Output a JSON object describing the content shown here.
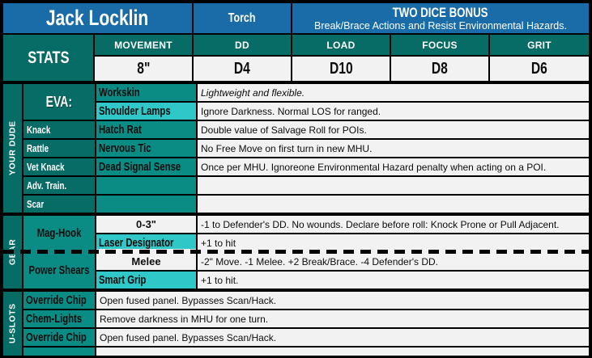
{
  "header": {
    "name": "Jack Locklin",
    "class": "Torch",
    "bonus_title": "TWO DICE BONUS",
    "bonus_subtitle": "Break/Brace Actions and Resist Environmental Hazards."
  },
  "stats": {
    "label": "STATS",
    "columns": [
      {
        "label": "MOVEMENT",
        "value": "8\""
      },
      {
        "label": "DD",
        "value": "D4"
      },
      {
        "label": "LOAD",
        "value": "D10"
      },
      {
        "label": "FOCUS",
        "value": "D8"
      },
      {
        "label": "GRIT",
        "value": "D6"
      }
    ]
  },
  "your_dude": {
    "section_label": "YOUR DUDE",
    "rows": [
      {
        "label": "EVA:",
        "item": "Workskin",
        "desc": "Lightweight and flexible."
      },
      {
        "label": "",
        "item": "Shoulder Lamps",
        "desc": "Ignore Darkness. Normal LOS for ranged."
      },
      {
        "label": "Knack",
        "item": "Hatch Rat",
        "desc": "Double value of Salvage Roll for POIs."
      },
      {
        "label": "Rattle",
        "item": "Nervous Tic",
        "desc": "No Free Move on first turn in new MHU."
      },
      {
        "label": "Vet Knack",
        "item": "Dead Signal Sense",
        "desc": "Once per MHU. Ignoreone Environmental Hazard penalty when acting on a POI."
      },
      {
        "label": "Adv. Train.",
        "item": "",
        "desc": ""
      },
      {
        "label": "Scar",
        "item": "",
        "desc": ""
      }
    ]
  },
  "gear": {
    "section_label": "GEAR",
    "weapons": [
      {
        "name": "Mag-Hook",
        "range": "0-3\"",
        "range_desc": "-1 to Defender's DD. No wounds. Declare before roll: Knock Prone or Pull Adjacent.",
        "mod": "Laser Designator",
        "mod_desc": "+1 to hit"
      },
      {
        "name": "Power Shears",
        "range": "Melee",
        "range_desc": "-2\" Move. -1 Melee. +2 Break/Brace. -4 Defender's DD.",
        "mod": "Smart Grip",
        "mod_desc": "+1 to hit."
      }
    ]
  },
  "u_slots": {
    "section_label": "U-SLOTS",
    "rows": [
      {
        "item": "Override Chip",
        "desc": "Open fused panel. Bypasses Scan/Hack."
      },
      {
        "item": "Chem-Lights",
        "desc": "Remove darkness in MHU for one turn."
      },
      {
        "item": "Override Chip",
        "desc": "Open fused panel. Bypasses Scan/Hack."
      },
      {
        "item": "",
        "desc": ""
      }
    ]
  },
  "colors": {
    "blue": "#1a6ca8",
    "teal-dark": "#076b66",
    "teal-mid": "#0a8c85",
    "cyan": "#2fc7c7",
    "paper": "#f2f2f2",
    "ink": "#0d0d0d"
  }
}
